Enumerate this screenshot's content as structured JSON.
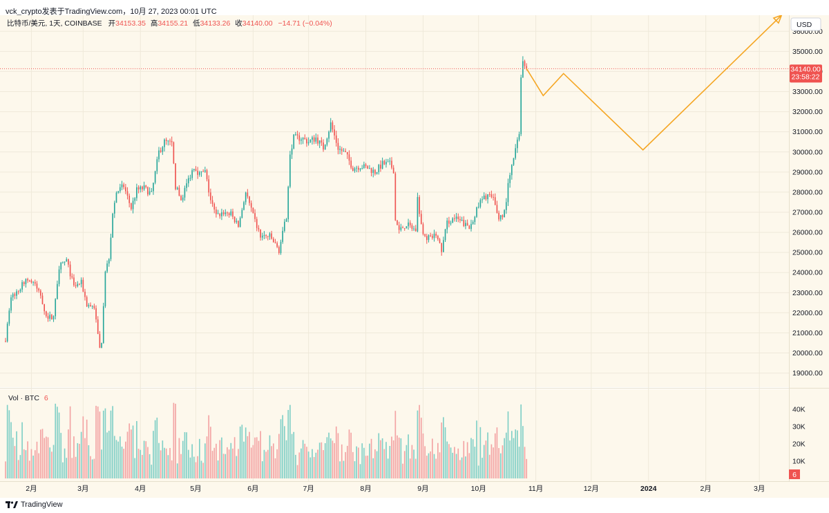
{
  "header": {
    "published_line": "vck_crypto发表于TradingView.com，10月 27, 2023 00:01 UTC"
  },
  "footer": {
    "brand": "TradingView"
  },
  "colors": {
    "up": "#26a69a",
    "down": "#ef5350",
    "vol_up": "#7fcfc6",
    "vol_down": "#f3a3a3",
    "projection": "#f5a623",
    "background": "#fdf8ec",
    "price_line": "#ef5350",
    "grid": "#efe9da",
    "axis_text": "#131722"
  },
  "legend": {
    "pair": "比特币/美元, 1天, COINBASE",
    "open_label": "开",
    "open": "34153.35",
    "high_label": "高",
    "high": "34155.21",
    "low_label": "低",
    "low": "34133.26",
    "close_label": "收",
    "close": "34140.00",
    "change": "−14.71 (−0.04%)"
  },
  "price_axis": {
    "currency": "USD",
    "current_price": "34140.00",
    "countdown": "23:58:22"
  },
  "volume_legend": {
    "label": "Vol · BTC",
    "value": "6",
    "badge": "6"
  },
  "chart_data": {
    "type": "candlestick",
    "symbol": "BTC/USD 1D COINBASE",
    "y_ticks": [
      19000,
      20000,
      21000,
      22000,
      23000,
      24000,
      25000,
      26000,
      27000,
      28000,
      29000,
      30000,
      31000,
      32000,
      33000,
      34000,
      35000,
      36000
    ],
    "y_tick_labels": [
      "19000.00",
      "20000.00",
      "21000.00",
      "22000.00",
      "23000.00",
      "24000.00",
      "25000.00",
      "26000.00",
      "27000.00",
      "28000.00",
      "29000.00",
      "30000.00",
      "31000.00",
      "32000.00",
      "33000.00",
      "34000.00",
      "35000.00",
      "36000.00"
    ],
    "ylim": [
      18300,
      36800
    ],
    "x_start": "2023-01-18",
    "x_end": "2024-03-17",
    "x_ticks": [
      {
        "date": "2023-02-01",
        "label": "2月"
      },
      {
        "date": "2023-03-01",
        "label": "3月"
      },
      {
        "date": "2023-04-01",
        "label": "4月"
      },
      {
        "date": "2023-05-01",
        "label": "5月"
      },
      {
        "date": "2023-06-01",
        "label": "6月"
      },
      {
        "date": "2023-07-01",
        "label": "7月"
      },
      {
        "date": "2023-08-01",
        "label": "8月"
      },
      {
        "date": "2023-09-01",
        "label": "9月"
      },
      {
        "date": "2023-10-01",
        "label": "10月"
      },
      {
        "date": "2023-11-01",
        "label": "11月"
      },
      {
        "date": "2023-12-01",
        "label": "12月"
      },
      {
        "date": "2024-01-01",
        "label": "2024"
      },
      {
        "date": "2024-02-01",
        "label": "2月"
      },
      {
        "date": "2024-03-01",
        "label": "3月"
      }
    ],
    "close_anchors": [
      [
        "2023-01-18",
        20700
      ],
      [
        "2023-01-21",
        22800
      ],
      [
        "2023-01-25",
        23100
      ],
      [
        "2023-01-29",
        23700
      ],
      [
        "2023-02-02",
        23500
      ],
      [
        "2023-02-06",
        22900
      ],
      [
        "2023-02-09",
        21800
      ],
      [
        "2023-02-13",
        21800
      ],
      [
        "2023-02-16",
        24300
      ],
      [
        "2023-02-20",
        24600
      ],
      [
        "2023-02-24",
        23300
      ],
      [
        "2023-02-28",
        23500
      ],
      [
        "2023-03-03",
        22400
      ],
      [
        "2023-03-07",
        22300
      ],
      [
        "2023-03-10",
        20200
      ],
      [
        "2023-03-11",
        20600
      ],
      [
        "2023-03-13",
        24000
      ],
      [
        "2023-03-15",
        24800
      ],
      [
        "2023-03-17",
        26900
      ],
      [
        "2023-03-19",
        28000
      ],
      [
        "2023-03-23",
        28300
      ],
      [
        "2023-03-27",
        27200
      ],
      [
        "2023-03-30",
        28100
      ],
      [
        "2023-04-03",
        28200
      ],
      [
        "2023-04-07",
        27900
      ],
      [
        "2023-04-11",
        30000
      ],
      [
        "2023-04-14",
        30500
      ],
      [
        "2023-04-18",
        30400
      ],
      [
        "2023-04-20",
        28300
      ],
      [
        "2023-04-23",
        27600
      ],
      [
        "2023-04-26",
        28400
      ],
      [
        "2023-04-30",
        29300
      ],
      [
        "2023-05-03",
        28900
      ],
      [
        "2023-05-06",
        29000
      ],
      [
        "2023-05-09",
        27600
      ],
      [
        "2023-05-12",
        26800
      ],
      [
        "2023-05-16",
        27000
      ],
      [
        "2023-05-20",
        26900
      ],
      [
        "2023-05-24",
        26300
      ],
      [
        "2023-05-28",
        28000
      ],
      [
        "2023-06-01",
        26800
      ],
      [
        "2023-06-05",
        25800
      ],
      [
        "2023-06-10",
        25800
      ],
      [
        "2023-06-15",
        25100
      ],
      [
        "2023-06-19",
        26800
      ],
      [
        "2023-06-21",
        30000
      ],
      [
        "2023-06-23",
        30700
      ],
      [
        "2023-06-27",
        30700
      ],
      [
        "2023-07-01",
        30500
      ],
      [
        "2023-07-05",
        30700
      ],
      [
        "2023-07-09",
        30200
      ],
      [
        "2023-07-13",
        31400
      ],
      [
        "2023-07-17",
        30200
      ],
      [
        "2023-07-21",
        29900
      ],
      [
        "2023-07-25",
        29200
      ],
      [
        "2023-07-29",
        29300
      ],
      [
        "2023-08-02",
        29200
      ],
      [
        "2023-08-06",
        29000
      ],
      [
        "2023-08-10",
        29400
      ],
      [
        "2023-08-14",
        29400
      ],
      [
        "2023-08-16",
        29100
      ],
      [
        "2023-08-17",
        26600
      ],
      [
        "2023-08-19",
        26100
      ],
      [
        "2023-08-23",
        26400
      ],
      [
        "2023-08-28",
        26100
      ],
      [
        "2023-08-29",
        27700
      ],
      [
        "2023-09-01",
        25800
      ],
      [
        "2023-09-05",
        25700
      ],
      [
        "2023-09-08",
        25900
      ],
      [
        "2023-09-11",
        25100
      ],
      [
        "2023-09-14",
        26500
      ],
      [
        "2023-09-18",
        26700
      ],
      [
        "2023-09-22",
        26500
      ],
      [
        "2023-09-26",
        26200
      ],
      [
        "2023-09-29",
        26900
      ],
      [
        "2023-10-02",
        27500
      ],
      [
        "2023-10-06",
        27900
      ],
      [
        "2023-10-09",
        27600
      ],
      [
        "2023-10-12",
        26700
      ],
      [
        "2023-10-15",
        27000
      ],
      [
        "2023-10-17",
        28300
      ],
      [
        "2023-10-20",
        29700
      ],
      [
        "2023-10-23",
        30900
      ],
      [
        "2023-10-24",
        33900
      ],
      [
        "2023-10-25",
        34500
      ],
      [
        "2023-10-26",
        34150
      ],
      [
        "2023-10-27",
        34140
      ]
    ],
    "projection_path": [
      [
        "2023-10-27",
        34140
      ],
      [
        "2023-11-05",
        32800
      ],
      [
        "2023-11-16",
        33900
      ],
      [
        "2023-12-29",
        30100
      ],
      [
        "2024-03-13",
        36800
      ]
    ],
    "volume_ticks": [
      10000,
      20000,
      30000,
      40000
    ],
    "volume_tick_labels": [
      "10K",
      "20K",
      "30K",
      "40K"
    ],
    "volume_max": 46000,
    "current_price": 34140
  }
}
